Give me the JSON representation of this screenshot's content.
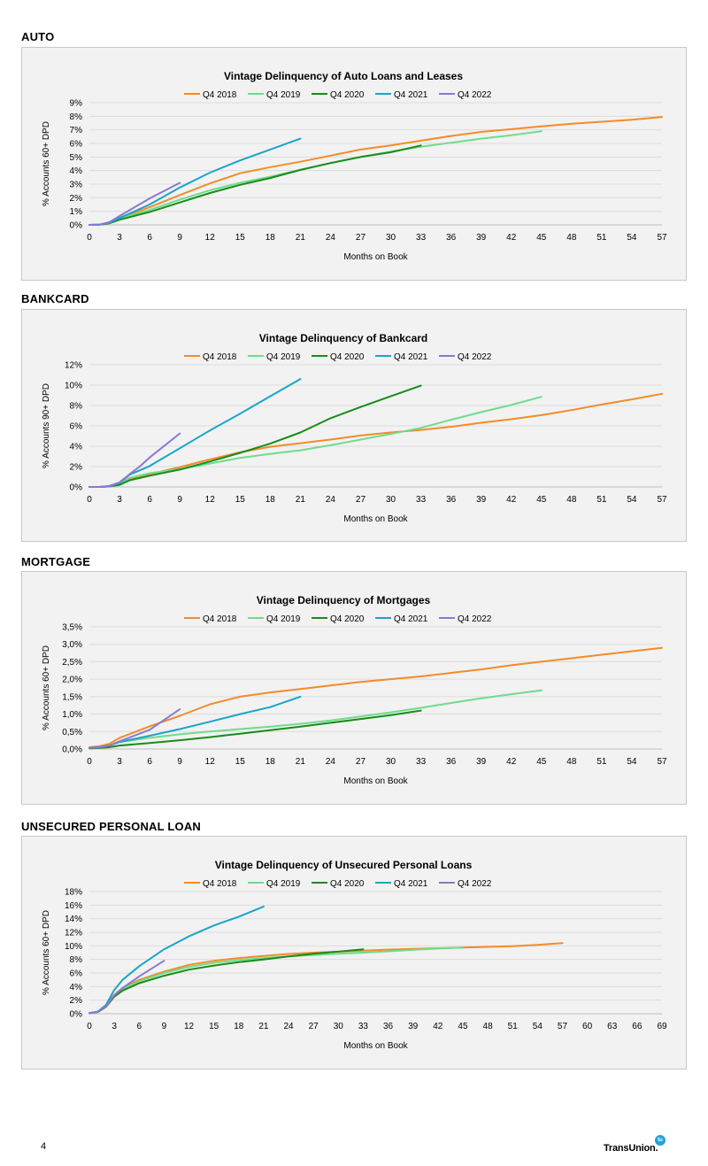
{
  "sections": [
    {
      "label": "AUTO"
    },
    {
      "label": "BANKCARD"
    },
    {
      "label": "MORTGAGE"
    },
    {
      "label": "UNSECURED PERSONAL LOAN"
    }
  ],
  "series_colors": {
    "Q4 2018": "#f28c28",
    "Q4 2019": "#6fdc8c",
    "Q4 2020": "#198c19",
    "Q4 2021": "#1aa5c7",
    "Q4 2022": "#8a78d4"
  },
  "chart_data": [
    {
      "type": "line",
      "title": "Vintage Delinquency of Auto Loans and Leases",
      "xlabel": "Months on Book",
      "ylabel": "% Accounts 60+ DPD",
      "xlim": [
        0,
        57
      ],
      "xticks": [
        0,
        3,
        6,
        9,
        12,
        15,
        18,
        21,
        24,
        27,
        30,
        33,
        36,
        39,
        42,
        45,
        48,
        51,
        54,
        57
      ],
      "ylim": [
        0,
        9
      ],
      "yticks": [
        0,
        1,
        2,
        3,
        4,
        5,
        6,
        7,
        8,
        9
      ],
      "ytick_labels": [
        "0%",
        "1%",
        "2%",
        "3%",
        "4%",
        "5%",
        "6%",
        "7%",
        "8%",
        "9%"
      ],
      "grid": "horizontal",
      "legend": "top",
      "series": [
        {
          "name": "Q4 2018",
          "x": [
            0,
            1,
            2,
            3,
            6,
            9,
            12,
            15,
            18,
            21,
            24,
            27,
            30,
            33,
            36,
            39,
            42,
            45,
            48,
            51,
            54,
            57
          ],
          "values": [
            0,
            0.02,
            0.15,
            0.5,
            1.3,
            2.2,
            3.05,
            3.8,
            4.25,
            4.65,
            5.1,
            5.55,
            5.85,
            6.2,
            6.55,
            6.85,
            7.05,
            7.25,
            7.45,
            7.6,
            7.75,
            7.95
          ]
        },
        {
          "name": "Q4 2019",
          "x": [
            0,
            1,
            2,
            3,
            6,
            9,
            12,
            15,
            18,
            21,
            24,
            27,
            30,
            33,
            36,
            39,
            42,
            45
          ],
          "values": [
            0,
            0.02,
            0.15,
            0.45,
            1.1,
            1.85,
            2.55,
            3.1,
            3.55,
            4.05,
            4.55,
            5,
            5.4,
            5.75,
            6.05,
            6.35,
            6.6,
            6.9
          ]
        },
        {
          "name": "Q4 2020",
          "x": [
            0,
            1,
            2,
            3,
            6,
            9,
            12,
            15,
            18,
            21,
            24,
            27,
            30,
            33
          ],
          "values": [
            0,
            0.02,
            0.12,
            0.38,
            0.95,
            1.65,
            2.35,
            2.95,
            3.45,
            4.05,
            4.55,
            5.0,
            5.35,
            5.85
          ]
        },
        {
          "name": "Q4 2021",
          "x": [
            0,
            1,
            2,
            3,
            6,
            9,
            12,
            15,
            18,
            21
          ],
          "values": [
            0,
            0.02,
            0.15,
            0.5,
            1.5,
            2.75,
            3.85,
            4.75,
            5.55,
            6.35
          ]
        },
        {
          "name": "Q4 2022",
          "x": [
            0,
            1,
            2,
            3,
            6,
            9
          ],
          "values": [
            0,
            0.02,
            0.2,
            0.65,
            1.95,
            3.1
          ]
        }
      ]
    },
    {
      "type": "line",
      "title": "Vintage Delinquency of Bankcard",
      "xlabel": "Months on Book",
      "ylabel": "% Accounts 90+ DPD",
      "xlim": [
        0,
        57
      ],
      "xticks": [
        0,
        3,
        6,
        9,
        12,
        15,
        18,
        21,
        24,
        27,
        30,
        33,
        36,
        39,
        42,
        45,
        48,
        51,
        54,
        57
      ],
      "ylim": [
        0,
        12
      ],
      "yticks": [
        0,
        2,
        4,
        6,
        8,
        10,
        12
      ],
      "ytick_labels": [
        "0%",
        "2%",
        "4%",
        "6%",
        "8%",
        "10%",
        "12%"
      ],
      "grid": "horizontal",
      "legend": "top",
      "series": [
        {
          "name": "Q4 2018",
          "x": [
            0,
            1,
            2,
            3,
            4,
            6,
            9,
            12,
            15,
            18,
            21,
            24,
            27,
            30,
            33,
            36,
            39,
            42,
            45,
            48,
            51,
            54,
            57
          ],
          "values": [
            0,
            0,
            0.05,
            0.3,
            0.8,
            1.25,
            1.95,
            2.7,
            3.4,
            3.95,
            4.3,
            4.65,
            5.05,
            5.35,
            5.6,
            5.9,
            6.3,
            6.65,
            7.05,
            7.55,
            8.1,
            8.6,
            9.15
          ]
        },
        {
          "name": "Q4 2019",
          "x": [
            0,
            1,
            2,
            3,
            4,
            6,
            9,
            12,
            15,
            18,
            21,
            24,
            27,
            30,
            33,
            36,
            39,
            42,
            45
          ],
          "values": [
            0,
            0,
            0.05,
            0.35,
            0.9,
            1.35,
            1.75,
            2.3,
            2.85,
            3.25,
            3.6,
            4.1,
            4.65,
            5.2,
            5.8,
            6.6,
            7.35,
            8.05,
            8.85
          ]
        },
        {
          "name": "Q4 2020",
          "x": [
            0,
            1,
            2,
            3,
            4,
            6,
            9,
            12,
            15,
            18,
            21,
            24,
            27,
            30,
            33
          ],
          "values": [
            0,
            0,
            0.05,
            0.2,
            0.65,
            1.1,
            1.7,
            2.5,
            3.35,
            4.25,
            5.35,
            6.75,
            7.85,
            8.9,
            9.95
          ]
        },
        {
          "name": "Q4 2021",
          "x": [
            0,
            1,
            2,
            3,
            4,
            6,
            9,
            12,
            15,
            18,
            21
          ],
          "values": [
            0,
            0,
            0.05,
            0.4,
            1.2,
            2.05,
            3.8,
            5.55,
            7.2,
            8.9,
            10.6
          ]
        },
        {
          "name": "Q4 2022",
          "x": [
            0,
            1,
            2,
            3,
            4,
            5,
            6,
            9
          ],
          "values": [
            0,
            0,
            0.1,
            0.45,
            1.25,
            2,
            2.9,
            5.25
          ]
        }
      ]
    },
    {
      "type": "line",
      "title": "Vintage Delinquency of Mortgages",
      "xlabel": "Months on Book",
      "ylabel": "% Accounts 60+ DPD",
      "xlim": [
        0,
        57
      ],
      "xticks": [
        0,
        3,
        6,
        9,
        12,
        15,
        18,
        21,
        24,
        27,
        30,
        33,
        36,
        39,
        42,
        45,
        48,
        51,
        54,
        57
      ],
      "ylim": [
        0,
        3.5
      ],
      "yticks": [
        0,
        0.5,
        1,
        1.5,
        2,
        2.5,
        3,
        3.5
      ],
      "ytick_labels": [
        "0,0%",
        "0,5%",
        "1,0%",
        "1,5%",
        "2,0%",
        "2,5%",
        "3,0%",
        "3,5%"
      ],
      "grid": "horizontal",
      "legend": "top",
      "series": [
        {
          "name": "Q4 2018",
          "x": [
            0,
            1,
            2,
            3,
            6,
            9,
            12,
            15,
            18,
            21,
            24,
            27,
            30,
            33,
            36,
            39,
            42,
            45,
            48,
            51,
            54,
            57
          ],
          "values": [
            0.05,
            0.08,
            0.15,
            0.32,
            0.65,
            0.95,
            1.28,
            1.5,
            1.62,
            1.72,
            1.82,
            1.92,
            2.0,
            2.08,
            2.18,
            2.28,
            2.4,
            2.5,
            2.6,
            2.7,
            2.8,
            2.9
          ]
        },
        {
          "name": "Q4 2019",
          "x": [
            0,
            1,
            2,
            3,
            6,
            9,
            12,
            15,
            18,
            21,
            24,
            27,
            30,
            33,
            36,
            39,
            42,
            45
          ],
          "values": [
            0.03,
            0.05,
            0.1,
            0.2,
            0.32,
            0.42,
            0.5,
            0.57,
            0.64,
            0.72,
            0.82,
            0.93,
            1.05,
            1.18,
            1.32,
            1.45,
            1.57,
            1.68
          ]
        },
        {
          "name": "Q4 2020",
          "x": [
            0,
            1,
            2,
            3,
            6,
            9,
            12,
            15,
            18,
            21,
            24,
            27,
            30,
            33
          ],
          "values": [
            0.02,
            0.03,
            0.05,
            0.1,
            0.17,
            0.25,
            0.34,
            0.44,
            0.54,
            0.64,
            0.75,
            0.86,
            0.97,
            1.1
          ]
        },
        {
          "name": "Q4 2021",
          "x": [
            0,
            1,
            2,
            3,
            6,
            9,
            12,
            15,
            18,
            21
          ],
          "values": [
            0.03,
            0.05,
            0.1,
            0.2,
            0.38,
            0.57,
            0.78,
            1.0,
            1.2,
            1.5
          ]
        },
        {
          "name": "Q4 2022",
          "x": [
            0,
            1,
            2,
            3,
            6,
            9
          ],
          "values": [
            0.03,
            0.05,
            0.1,
            0.22,
            0.55,
            1.14
          ]
        }
      ]
    },
    {
      "type": "line",
      "title": "Vintage Delinquency of Unsecured Personal Loans",
      "xlabel": "Months on Book",
      "ylabel": "% Accounts 60+ DPD",
      "xlim": [
        0,
        69
      ],
      "xticks": [
        0,
        3,
        6,
        9,
        12,
        15,
        18,
        21,
        24,
        27,
        30,
        33,
        36,
        39,
        42,
        45,
        48,
        51,
        54,
        57,
        60,
        63,
        66,
        69
      ],
      "ylim": [
        0,
        18
      ],
      "yticks": [
        0,
        2,
        4,
        6,
        8,
        10,
        12,
        14,
        16,
        18
      ],
      "ytick_labels": [
        "0%",
        "2%",
        "4%",
        "6%",
        "8%",
        "10%",
        "12%",
        "14%",
        "16%",
        "18%"
      ],
      "grid": "horizontal",
      "legend": "top",
      "series": [
        {
          "name": "Q4 2018",
          "x": [
            0,
            1,
            2,
            3,
            4,
            6,
            9,
            12,
            15,
            18,
            21,
            24,
            27,
            30,
            33,
            36,
            39,
            42,
            45,
            48,
            51,
            54,
            57
          ],
          "values": [
            0.1,
            0.3,
            1.2,
            2.8,
            3.8,
            5.0,
            6.2,
            7.2,
            7.8,
            8.2,
            8.5,
            8.8,
            9.0,
            9.15,
            9.3,
            9.45,
            9.55,
            9.65,
            9.75,
            9.85,
            9.95,
            10.15,
            10.4
          ]
        },
        {
          "name": "Q4 2019",
          "x": [
            0,
            1,
            2,
            3,
            4,
            6,
            9,
            12,
            15,
            18,
            21,
            24,
            27,
            30,
            33,
            36,
            39,
            42,
            45
          ],
          "values": [
            0.1,
            0.3,
            1.1,
            2.6,
            3.6,
            4.8,
            6.0,
            6.9,
            7.5,
            7.9,
            8.2,
            8.45,
            8.65,
            8.85,
            9.0,
            9.2,
            9.4,
            9.6,
            9.75
          ]
        },
        {
          "name": "Q4 2020",
          "x": [
            0,
            1,
            2,
            3,
            4,
            6,
            9,
            12,
            15,
            18,
            21,
            24,
            27,
            30,
            33
          ],
          "values": [
            0.1,
            0.25,
            1.0,
            2.5,
            3.4,
            4.5,
            5.6,
            6.5,
            7.1,
            7.6,
            8.0,
            8.45,
            8.85,
            9.15,
            9.5
          ]
        },
        {
          "name": "Q4 2021",
          "x": [
            0,
            1,
            2,
            3,
            4,
            6,
            9,
            12,
            15,
            18,
            21
          ],
          "values": [
            0.1,
            0.3,
            1.3,
            3.5,
            5.0,
            7.0,
            9.5,
            11.4,
            13.0,
            14.3,
            15.8
          ]
        },
        {
          "name": "Q4 2022",
          "x": [
            0,
            1,
            2,
            3,
            4,
            6,
            9
          ],
          "values": [
            0.1,
            0.3,
            1.1,
            2.7,
            3.8,
            5.5,
            7.8
          ]
        }
      ]
    }
  ],
  "footer": {
    "page_number": "4",
    "brand_name": "TransUnion.",
    "brand_mark": "tu"
  }
}
